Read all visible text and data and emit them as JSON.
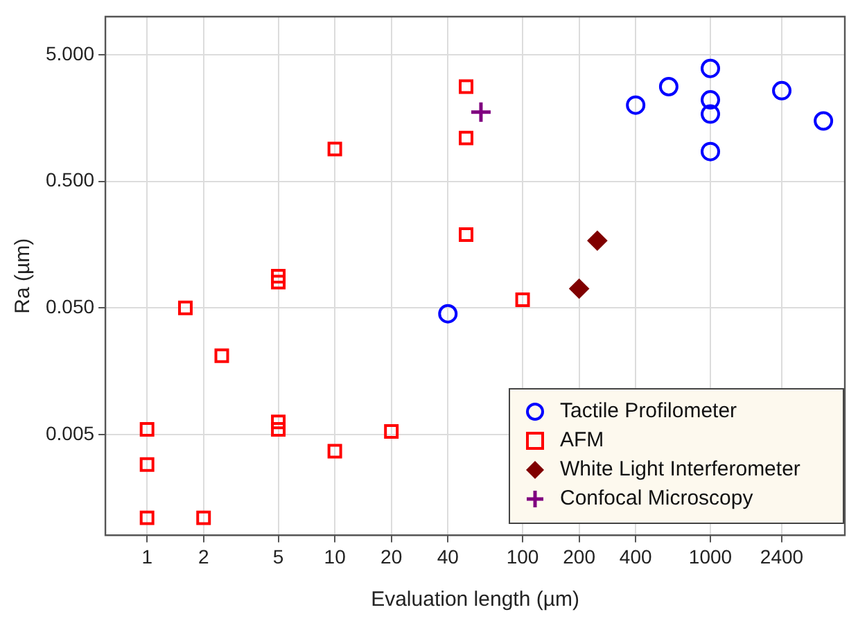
{
  "chart_data": {
    "type": "scatter",
    "xlabel": "Evaluation length (µm)",
    "ylabel": "Ra (µm)",
    "log": "xy",
    "grid": true,
    "legend": "bottom right",
    "xlim": [
      0.6,
      5200
    ],
    "ylim": [
      0.0008,
      10
    ],
    "xticks": [
      1,
      2,
      5,
      10,
      20,
      40,
      100,
      200,
      400,
      1000,
      2400
    ],
    "yticks": [
      {
        "value": 0.005,
        "label": "0.005"
      },
      {
        "value": 0.05,
        "label": "0.050"
      },
      {
        "value": 0.5,
        "label": "0.500"
      },
      {
        "value": 5,
        "label": "5.000"
      }
    ],
    "series": [
      {
        "name": "Tactile Profilometer",
        "color": "#0000ff",
        "marker": "circle",
        "x": [
          40,
          400,
          600,
          1000,
          1000,
          1000,
          1000,
          2400,
          4000
        ],
        "values": [
          0.045,
          2.0,
          2.8,
          3.9,
          2.2,
          1.7,
          0.86,
          2.6,
          1.5
        ]
      },
      {
        "name": "AFM",
        "color": "#ff0000",
        "marker": "square",
        "x": [
          50,
          50,
          10,
          50,
          5,
          5,
          1.6,
          100,
          2.5,
          1,
          1,
          1,
          2,
          5,
          5,
          10,
          20
        ],
        "values": [
          2.8,
          1.1,
          0.9,
          0.19,
          0.089,
          0.08,
          0.05,
          0.058,
          0.021,
          0.0055,
          0.0029,
          0.0011,
          0.0011,
          0.0063,
          0.0055,
          0.0037,
          0.0053
        ]
      },
      {
        "name": "White Light Interferometer",
        "color": "#800000",
        "marker": "diamond",
        "x": [
          200,
          250
        ],
        "values": [
          0.071,
          0.17
        ]
      },
      {
        "name": "Confocal Microscopy",
        "color": "#800080",
        "marker": "cross",
        "x": [
          60
        ],
        "values": [
          1.76
        ]
      }
    ]
  }
}
